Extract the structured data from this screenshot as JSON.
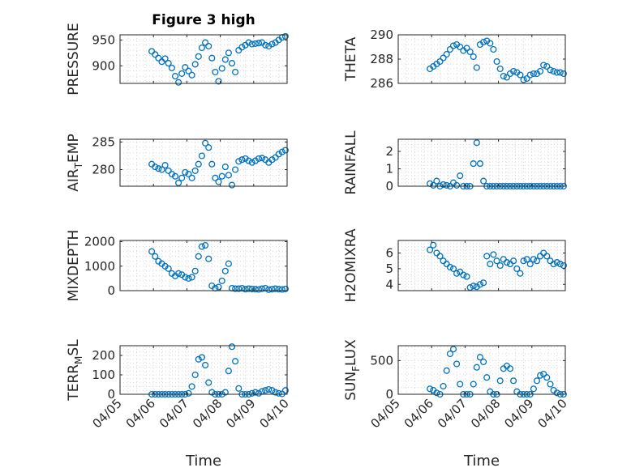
{
  "figure": {
    "title": "Figure 3 high",
    "xlabel": "Time"
  },
  "colors": {
    "marker": "#0072BD",
    "axis": "#262626",
    "grid": "#d8d8d8",
    "background": "#ffffff"
  },
  "chart_data": [
    {
      "type": "scatter",
      "panel": "top-left",
      "ylabel": "PRESSURE",
      "ylim": [
        866,
        960
      ],
      "yticks": [
        900,
        950
      ],
      "yticklabels": [
        "900",
        "950"
      ],
      "xlim": [
        0,
        5
      ],
      "xticks": [
        0,
        1,
        2,
        3,
        4,
        5
      ],
      "xticklabels": [
        "04/05",
        "04/06",
        "04/07",
        "04/08",
        "04/09",
        "04/10"
      ],
      "grid": true,
      "marker": "circle",
      "x": [
        0.95,
        1.05,
        1.15,
        1.25,
        1.35,
        1.45,
        1.55,
        1.65,
        1.75,
        1.85,
        1.95,
        2.05,
        2.15,
        2.25,
        2.35,
        2.45,
        2.55,
        2.65,
        2.75,
        2.85,
        2.95,
        3.05,
        3.15,
        3.25,
        3.35,
        3.45,
        3.55,
        3.65,
        3.75,
        3.85,
        3.95,
        4.05,
        4.15,
        4.25,
        4.35,
        4.45,
        4.55,
        4.65,
        4.75,
        4.85,
        4.95
      ],
      "y": [
        928,
        922,
        915,
        908,
        914,
        905,
        896,
        880,
        868,
        885,
        897,
        890,
        882,
        903,
        918,
        935,
        945,
        938,
        915,
        888,
        870,
        895,
        912,
        925,
        905,
        888,
        930,
        936,
        940,
        945,
        942,
        943,
        944,
        945,
        940,
        938,
        942,
        945,
        950,
        955,
        957
      ]
    },
    {
      "type": "scatter",
      "panel": "top-right",
      "ylabel": "THETA",
      "ylim": [
        286,
        290
      ],
      "yticks": [
        286,
        288,
        290
      ],
      "yticklabels": [
        "286",
        "288",
        "290"
      ],
      "xlim": [
        0,
        5
      ],
      "xticks": [
        0,
        1,
        2,
        3,
        4,
        5
      ],
      "xticklabels": [
        "04/05",
        "04/06",
        "04/07",
        "04/08",
        "04/09",
        "04/10"
      ],
      "grid": true,
      "marker": "circle",
      "x": [
        0.95,
        1.05,
        1.15,
        1.25,
        1.35,
        1.45,
        1.55,
        1.65,
        1.75,
        1.85,
        1.95,
        2.05,
        2.15,
        2.25,
        2.35,
        2.45,
        2.55,
        2.65,
        2.75,
        2.85,
        2.95,
        3.05,
        3.15,
        3.25,
        3.35,
        3.45,
        3.55,
        3.65,
        3.75,
        3.85,
        3.95,
        4.05,
        4.15,
        4.25,
        4.35,
        4.45,
        4.55,
        4.65,
        4.75,
        4.85,
        4.95
      ],
      "y": [
        287.2,
        287.4,
        287.6,
        287.8,
        288.1,
        288.4,
        288.8,
        289.1,
        289.2,
        289.0,
        288.7,
        288.9,
        288.6,
        288.2,
        287.3,
        289.2,
        289.4,
        289.5,
        289.3,
        288.8,
        287.8,
        287.2,
        286.6,
        286.5,
        286.8,
        287.0,
        286.9,
        286.7,
        286.3,
        286.4,
        286.7,
        286.8,
        286.8,
        287.0,
        287.5,
        287.4,
        287.1,
        287.0,
        286.9,
        286.9,
        286.8
      ]
    },
    {
      "type": "scatter",
      "panel": "row2-left",
      "ylabel": "AIR_TEMP",
      "ylim": [
        277,
        285.5
      ],
      "yticks": [
        280,
        285
      ],
      "yticklabels": [
        "280",
        "285"
      ],
      "xlim": [
        0,
        5
      ],
      "xticks": [
        0,
        1,
        2,
        3,
        4,
        5
      ],
      "xticklabels": [
        "04/05",
        "04/06",
        "04/07",
        "04/08",
        "04/09",
        "04/10"
      ],
      "grid": true,
      "marker": "circle",
      "x": [
        0.95,
        1.05,
        1.15,
        1.25,
        1.35,
        1.45,
        1.55,
        1.65,
        1.75,
        1.85,
        1.95,
        2.05,
        2.15,
        2.25,
        2.35,
        2.45,
        2.55,
        2.65,
        2.75,
        2.85,
        2.95,
        3.05,
        3.15,
        3.25,
        3.35,
        3.45,
        3.55,
        3.65,
        3.75,
        3.85,
        3.95,
        4.05,
        4.15,
        4.25,
        4.35,
        4.45,
        4.55,
        4.65,
        4.75,
        4.85,
        4.95
      ],
      "y": [
        281.0,
        280.5,
        280.2,
        280.0,
        280.8,
        279.8,
        279.2,
        278.8,
        277.6,
        278.5,
        279.5,
        279.2,
        278.5,
        279.8,
        281.0,
        282.5,
        284.8,
        284.0,
        281.0,
        278.5,
        277.8,
        278.8,
        280.5,
        279.0,
        277.2,
        280.0,
        281.5,
        281.8,
        282.0,
        281.6,
        281.3,
        281.6,
        282.0,
        282.1,
        281.8,
        281.3,
        281.8,
        282.2,
        282.8,
        283.2,
        283.5
      ]
    },
    {
      "type": "scatter",
      "panel": "row2-right",
      "ylabel": "RAINFALL",
      "ylim": [
        0,
        2.7
      ],
      "yticks": [
        0,
        1,
        2
      ],
      "yticklabels": [
        "0",
        "1",
        "2"
      ],
      "xlim": [
        0,
        5
      ],
      "xticks": [
        0,
        1,
        2,
        3,
        4,
        5
      ],
      "xticklabels": [
        "04/05",
        "04/06",
        "04/07",
        "04/08",
        "04/09",
        "04/10"
      ],
      "grid": true,
      "marker": "circle",
      "x": [
        0.95,
        1.05,
        1.15,
        1.25,
        1.35,
        1.45,
        1.55,
        1.65,
        1.75,
        1.85,
        1.95,
        2.05,
        2.15,
        2.25,
        2.35,
        2.45,
        2.55,
        2.65,
        2.75,
        2.85,
        2.95,
        3.05,
        3.15,
        3.25,
        3.35,
        3.45,
        3.55,
        3.65,
        3.75,
        3.85,
        3.95,
        4.05,
        4.15,
        4.25,
        4.35,
        4.45,
        4.55,
        4.65,
        4.75,
        4.85,
        4.95
      ],
      "y": [
        0.15,
        0.05,
        0.3,
        0.0,
        0.1,
        0.05,
        0.0,
        0.2,
        0.05,
        0.6,
        0.0,
        0.0,
        0.0,
        1.3,
        2.5,
        1.3,
        0.3,
        0.0,
        0.0,
        0.0,
        0.0,
        0.0,
        0.0,
        0.0,
        0.0,
        0.0,
        0.0,
        0.0,
        0.0,
        0.0,
        0.0,
        0.0,
        0.0,
        0.0,
        0.0,
        0.0,
        0.0,
        0.0,
        0.0,
        0.0,
        0.0
      ]
    },
    {
      "type": "scatter",
      "panel": "row3-left",
      "ylabel": "MIXDEPTH",
      "ylim": [
        0,
        2050
      ],
      "yticks": [
        0,
        1000,
        2000
      ],
      "yticklabels": [
        "0",
        "1000",
        "2000"
      ],
      "xlim": [
        0,
        5
      ],
      "xticks": [
        0,
        1,
        2,
        3,
        4,
        5
      ],
      "xticklabels": [
        "04/05",
        "04/06",
        "04/07",
        "04/08",
        "04/09",
        "04/10"
      ],
      "grid": true,
      "marker": "circle",
      "x": [
        0.95,
        1.05,
        1.15,
        1.25,
        1.35,
        1.45,
        1.55,
        1.65,
        1.75,
        1.85,
        1.95,
        2.05,
        2.15,
        2.25,
        2.35,
        2.45,
        2.55,
        2.65,
        2.75,
        2.85,
        2.95,
        3.05,
        3.15,
        3.25,
        3.35,
        3.45,
        3.55,
        3.65,
        3.75,
        3.85,
        3.95,
        4.05,
        4.15,
        4.25,
        4.35,
        4.45,
        4.55,
        4.65,
        4.75,
        4.85,
        4.95
      ],
      "y": [
        1600,
        1400,
        1200,
        1100,
        1000,
        900,
        700,
        600,
        700,
        650,
        550,
        500,
        550,
        800,
        1400,
        1800,
        1850,
        1300,
        200,
        100,
        150,
        400,
        800,
        1100,
        100,
        80,
        80,
        100,
        60,
        80,
        70,
        60,
        50,
        80,
        100,
        40,
        60,
        80,
        60,
        50,
        70
      ]
    },
    {
      "type": "scatter",
      "panel": "row3-right",
      "ylabel": "H2OMIXRA",
      "ylim": [
        3.6,
        6.8
      ],
      "yticks": [
        4,
        5,
        6
      ],
      "yticklabels": [
        "4",
        "5",
        "6"
      ],
      "xlim": [
        0,
        5
      ],
      "xticks": [
        0,
        1,
        2,
        3,
        4,
        5
      ],
      "xticklabels": [
        "04/05",
        "04/06",
        "04/07",
        "04/08",
        "04/09",
        "04/10"
      ],
      "grid": true,
      "marker": "circle",
      "x": [
        0.95,
        1.05,
        1.15,
        1.25,
        1.35,
        1.45,
        1.55,
        1.65,
        1.75,
        1.85,
        1.95,
        2.05,
        2.15,
        2.25,
        2.35,
        2.45,
        2.55,
        2.65,
        2.75,
        2.85,
        2.95,
        3.05,
        3.15,
        3.25,
        3.35,
        3.45,
        3.55,
        3.65,
        3.75,
        3.85,
        3.95,
        4.05,
        4.15,
        4.25,
        4.35,
        4.45,
        4.55,
        4.65,
        4.75,
        4.85,
        4.95
      ],
      "y": [
        6.2,
        6.5,
        6.0,
        5.8,
        5.5,
        5.3,
        5.1,
        5.0,
        4.7,
        4.8,
        4.6,
        4.5,
        3.8,
        3.9,
        3.85,
        4.0,
        4.1,
        5.8,
        5.3,
        5.9,
        5.5,
        5.2,
        5.6,
        5.4,
        5.3,
        5.5,
        5.0,
        4.7,
        5.5,
        5.6,
        5.3,
        5.6,
        5.5,
        5.8,
        6.0,
        5.8,
        5.5,
        5.3,
        5.4,
        5.3,
        5.2
      ]
    },
    {
      "type": "scatter",
      "panel": "bottom-left",
      "ylabel": "TERR_MSL",
      "ylim": [
        0,
        250
      ],
      "yticks": [
        0,
        100,
        200
      ],
      "yticklabels": [
        "0",
        "100",
        "200"
      ],
      "xlim": [
        0,
        5
      ],
      "xticks": [
        0,
        1,
        2,
        3,
        4,
        5
      ],
      "xticklabels": [
        "04/05",
        "04/06",
        "04/07",
        "04/08",
        "04/09",
        "04/10"
      ],
      "grid": true,
      "marker": "circle",
      "x": [
        0.95,
        1.05,
        1.15,
        1.25,
        1.35,
        1.45,
        1.55,
        1.65,
        1.75,
        1.85,
        1.95,
        2.05,
        2.15,
        2.25,
        2.35,
        2.45,
        2.55,
        2.65,
        2.75,
        2.85,
        2.95,
        3.05,
        3.15,
        3.25,
        3.35,
        3.45,
        3.55,
        3.65,
        3.75,
        3.85,
        3.95,
        4.05,
        4.15,
        4.25,
        4.35,
        4.45,
        4.55,
        4.65,
        4.75,
        4.85,
        4.95
      ],
      "y": [
        0,
        0,
        0,
        0,
        0,
        0,
        0,
        0,
        0,
        0,
        0,
        5,
        40,
        100,
        180,
        190,
        150,
        60,
        10,
        0,
        0,
        0,
        10,
        120,
        245,
        170,
        30,
        0,
        0,
        0,
        5,
        10,
        5,
        15,
        20,
        25,
        20,
        10,
        5,
        2,
        20
      ]
    },
    {
      "type": "scatter",
      "panel": "bottom-right",
      "ylabel": "SUN_FLUX",
      "ylim": [
        0,
        720
      ],
      "yticks": [
        0,
        500
      ],
      "yticklabels": [
        "0",
        "500"
      ],
      "xlim": [
        0,
        5
      ],
      "xticks": [
        0,
        1,
        2,
        3,
        4,
        5
      ],
      "xticklabels": [
        "04/05",
        "04/06",
        "04/07",
        "04/08",
        "04/09",
        "04/10"
      ],
      "grid": true,
      "marker": "circle",
      "x": [
        0.95,
        1.05,
        1.15,
        1.25,
        1.35,
        1.45,
        1.55,
        1.65,
        1.75,
        1.85,
        1.95,
        2.05,
        2.15,
        2.25,
        2.35,
        2.45,
        2.55,
        2.65,
        2.75,
        2.85,
        2.95,
        3.05,
        3.15,
        3.25,
        3.35,
        3.45,
        3.55,
        3.65,
        3.75,
        3.85,
        3.95,
        4.05,
        4.15,
        4.25,
        4.35,
        4.45,
        4.55,
        4.65,
        4.75,
        4.85,
        4.95
      ],
      "y": [
        80,
        60,
        20,
        0,
        120,
        350,
        600,
        670,
        450,
        150,
        0,
        0,
        0,
        150,
        400,
        550,
        480,
        250,
        40,
        0,
        0,
        200,
        380,
        420,
        380,
        200,
        40,
        0,
        0,
        0,
        0,
        80,
        200,
        280,
        300,
        250,
        150,
        60,
        20,
        0,
        0
      ]
    }
  ]
}
